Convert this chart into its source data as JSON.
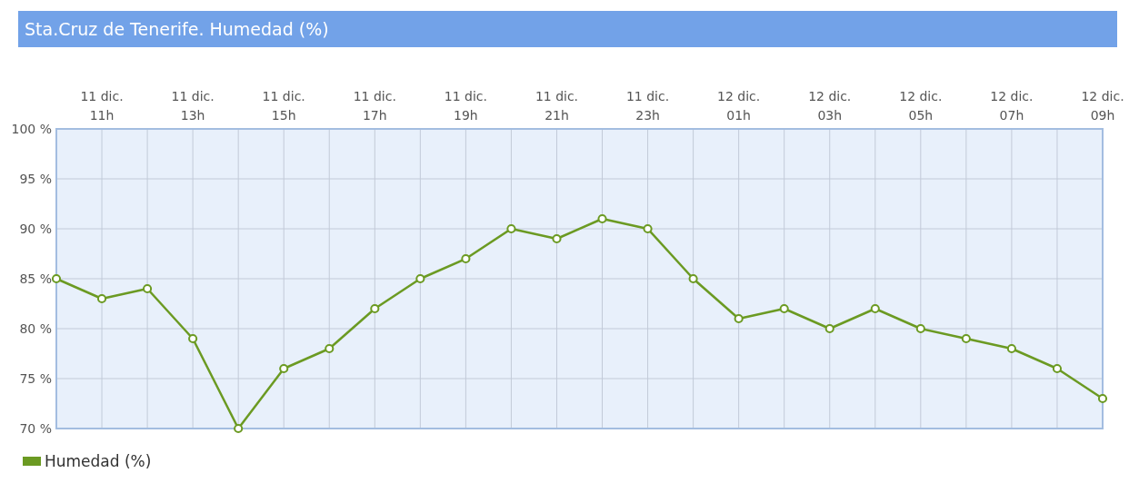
{
  "chart_data": {
    "type": "line",
    "title": "Sta.Cruz de Tenerife. Humedad (%)",
    "categories": [
      null,
      "11 dic.\n11h",
      null,
      "11 dic.\n13h",
      null,
      "11 dic.\n15h",
      null,
      "11 dic.\n17h",
      null,
      "11 dic.\n19h",
      null,
      "11 dic.\n21h",
      null,
      "11 dic.\n23h",
      null,
      "12 dic.\n01h",
      null,
      "12 dic.\n03h",
      null,
      "12 dic.\n05h",
      null,
      "12 dic.\n07h",
      null,
      "12 dic.\n09h"
    ],
    "series": [
      {
        "name": "Humedad (%)",
        "color": "#6b9a22",
        "values": [
          85,
          83,
          84,
          79,
          70,
          76,
          78,
          82,
          85,
          87,
          90,
          89,
          91,
          90,
          85,
          81,
          82,
          80,
          82,
          80,
          79,
          78,
          76,
          73
        ]
      }
    ],
    "ylim": [
      70,
      100
    ],
    "yticks": [
      {
        "value": 70,
        "label": "70 %"
      },
      {
        "value": 75,
        "label": "75 %"
      },
      {
        "value": 80,
        "label": "80 %"
      },
      {
        "value": 85,
        "label": "85 %"
      },
      {
        "value": 90,
        "label": "90 %"
      },
      {
        "value": 95,
        "label": "95 %"
      },
      {
        "value": 100,
        "label": "100 %"
      }
    ],
    "grid": true,
    "legend": "bottom left",
    "marker": "circle",
    "line_style": "solid"
  }
}
